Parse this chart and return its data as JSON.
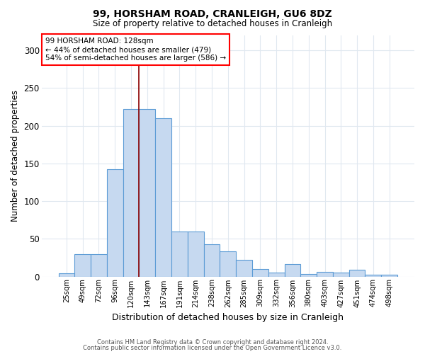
{
  "title1": "99, HORSHAM ROAD, CRANLEIGH, GU6 8DZ",
  "title2": "Size of property relative to detached houses in Cranleigh",
  "xlabel": "Distribution of detached houses by size in Cranleigh",
  "ylabel": "Number of detached properties",
  "categories": [
    "25sqm",
    "49sqm",
    "72sqm",
    "96sqm",
    "120sqm",
    "143sqm",
    "167sqm",
    "191sqm",
    "214sqm",
    "238sqm",
    "262sqm",
    "285sqm",
    "309sqm",
    "332sqm",
    "356sqm",
    "380sqm",
    "403sqm",
    "427sqm",
    "451sqm",
    "474sqm",
    "498sqm"
  ],
  "values": [
    4,
    30,
    30,
    142,
    222,
    222,
    210,
    60,
    60,
    43,
    33,
    22,
    10,
    5,
    16,
    3,
    6,
    5,
    9,
    2,
    2
  ],
  "bar_color": "#c6d9f0",
  "bar_edge_color": "#5b9bd5",
  "bar_edge_width": 0.8,
  "annotation_line1": "99 HORSHAM ROAD: 128sqm",
  "annotation_line2": "← 44% of detached houses are smaller (479)",
  "annotation_line3": "54% of semi-detached houses are larger (586) →",
  "annotation_box_color": "white",
  "annotation_box_edge": "red",
  "ylim": [
    0,
    320
  ],
  "yticks": [
    0,
    50,
    100,
    150,
    200,
    250,
    300
  ],
  "footnote1": "Contains HM Land Registry data © Crown copyright and database right 2024.",
  "footnote2": "Contains public sector information licensed under the Open Government Licence v3.0.",
  "bg_color": "white",
  "grid_color": "#e0e8f0"
}
